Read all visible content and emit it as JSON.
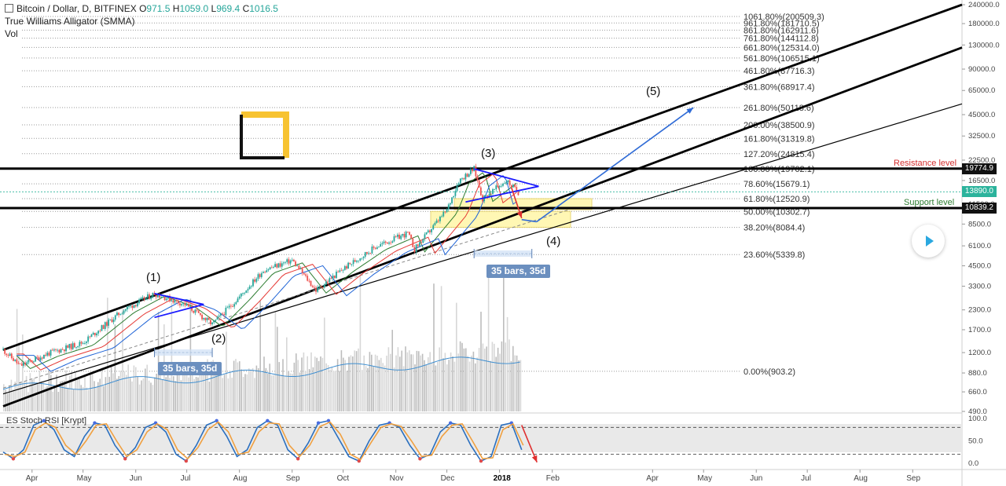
{
  "header": {
    "symbol": "Bitcoin / Dollar, D, BITFINEX",
    "open_label": "O",
    "open": "971.5",
    "high_label": "H",
    "high": "1059.0",
    "low_label": "L",
    "low": "969.4",
    "close_label": "C",
    "close": "1016.5",
    "indicator1": "True Williams Alligator (SMMA)",
    "indicator2": "Vol",
    "toggle_icon": "square-toggle-icon"
  },
  "colors": {
    "up": "#26a69a",
    "down": "#ef5350",
    "channel": "#000000",
    "triangle": "#1a1aff",
    "arrow_up": "#2f6bd6",
    "arrow_down": "#e03030",
    "stoch_k": "#2a6fbf",
    "stoch_d": "#f0a040",
    "logo": "#f7c331"
  },
  "annotations": {
    "resistance_text": "Resistance level",
    "support_text": "Support level",
    "bars_note_1": "35 bars, 35d",
    "bars_note_2": "35 bars, 35d",
    "play_icon": "play-icon",
    "logo_icon": "yellow-bracket-logo-icon"
  },
  "waves": [
    {
      "label": "(1)",
      "date": "2017-06-12"
    },
    {
      "label": "(2)",
      "date": "2017-07-16"
    },
    {
      "label": "(3)",
      "date": "2017-12-17"
    },
    {
      "label": "(4)",
      "date": "2018-01-20"
    },
    {
      "label": "(5)",
      "date": "2018-04-20"
    }
  ],
  "chart_data": [
    {
      "type": "candlestick",
      "title": "Bitcoin / Dollar, D, BITFINEX",
      "y_scale": "log",
      "ylim": [
        490,
        240000
      ],
      "xlim": [
        "2017-03-15",
        "2018-09-30"
      ],
      "x_tick_labels": [
        "Apr",
        "May",
        "Jun",
        "Jul",
        "Aug",
        "Sep",
        "Oct",
        "Nov",
        "Dec",
        "2018",
        "Feb",
        "Apr",
        "May",
        "Jun",
        "Jul",
        "Aug",
        "Sep"
      ],
      "y_tick_labels": [
        "240000.0",
        "180000.0",
        "130000.0",
        "90000.0",
        "65000.0",
        "45000.0",
        "32500.0",
        "22500.0",
        "16500.0",
        "11500.0",
        "8500.0",
        "6100.0",
        "4500.0",
        "3300.0",
        "2300.0",
        "1700.0",
        "1200.0",
        "880.0",
        "660.0",
        "490.0"
      ],
      "price_badges": {
        "resistance": "19774.9",
        "current": "13890.0",
        "support": "10839.2"
      },
      "fibonacci_levels": [
        {
          "label": "0.00%(903.2)",
          "price": 903.2
        },
        {
          "label": "23.60%(5339.8)",
          "price": 5339.8
        },
        {
          "label": "38.20%(8084.4)",
          "price": 8084.4
        },
        {
          "label": "50.00%(10302.7)",
          "price": 10302.7
        },
        {
          "label": "61.80%(12520.9)",
          "price": 12520.9
        },
        {
          "label": "78.60%(15679.1)",
          "price": 15679.1
        },
        {
          "label": "100.00%(19702.1)",
          "price": 19702.1
        },
        {
          "label": "127.20%(24815.4)",
          "price": 24815.4
        },
        {
          "label": "161.80%(31319.8)",
          "price": 31319.8
        },
        {
          "label": "200.00%(38500.9)",
          "price": 38500.9
        },
        {
          "label": "261.80%(50118.6)",
          "price": 50118.6
        },
        {
          "label": "361.80%(68917.4)",
          "price": 68917.4
        },
        {
          "label": "461.80%(87716.3)",
          "price": 87716.3
        },
        {
          "label": "561.80%(106515.1)",
          "price": 106515.1
        },
        {
          "label": "661.80%(125314.0)",
          "price": 125314.0
        },
        {
          "label": "761.80%(144112.8)",
          "price": 144112.8
        },
        {
          "label": "861.80%(162911.6)",
          "price": 162911.6
        },
        {
          "label": "961.80%(181710.5)",
          "price": 181710.5
        },
        {
          "label": "1061.80%(200509.3)",
          "price": 200509.3
        }
      ],
      "price_path": [
        {
          "x": "2017-03-15",
          "y": 1250
        },
        {
          "x": "2017-03-25",
          "y": 980
        },
        {
          "x": "2017-04-10",
          "y": 1180
        },
        {
          "x": "2017-05-01",
          "y": 1400
        },
        {
          "x": "2017-05-25",
          "y": 2300
        },
        {
          "x": "2017-06-12",
          "y": 2950
        },
        {
          "x": "2017-06-30",
          "y": 2500
        },
        {
          "x": "2017-07-16",
          "y": 1850
        },
        {
          "x": "2017-08-01",
          "y": 2800
        },
        {
          "x": "2017-08-15",
          "y": 4200
        },
        {
          "x": "2017-09-01",
          "y": 4900
        },
        {
          "x": "2017-09-15",
          "y": 3100
        },
        {
          "x": "2017-10-01",
          "y": 4300
        },
        {
          "x": "2017-10-20",
          "y": 6000
        },
        {
          "x": "2017-11-08",
          "y": 7400
        },
        {
          "x": "2017-11-12",
          "y": 5800
        },
        {
          "x": "2017-12-01",
          "y": 10500
        },
        {
          "x": "2017-12-08",
          "y": 16500
        },
        {
          "x": "2017-12-17",
          "y": 19700
        },
        {
          "x": "2017-12-22",
          "y": 12500
        },
        {
          "x": "2018-01-05",
          "y": 16500
        },
        {
          "x": "2018-01-12",
          "y": 13800
        }
      ],
      "channel_lines": [
        {
          "name": "upper",
          "from": {
            "x": "2017-03-15",
            "y": 1250
          },
          "to": {
            "x": "2018-09-30",
            "y": 240000
          }
        },
        {
          "name": "middle",
          "from": {
            "x": "2017-03-15",
            "y": 530
          },
          "to": {
            "x": "2018-09-30",
            "y": 125000
          }
        },
        {
          "name": "lower",
          "from": {
            "x": "2017-03-15",
            "y": 640
          },
          "to": {
            "x": "2018-09-30",
            "y": 53000
          }
        }
      ],
      "horizontal_levels": [
        {
          "name": "resistance",
          "y": 19774.9
        },
        {
          "name": "support",
          "y": 10839.2
        }
      ]
    },
    {
      "type": "line",
      "title": "ES Stoch RSI [Krypt]",
      "ylim": [
        0,
        100
      ],
      "y_tick_labels": [
        "100.0",
        "50.0",
        "0.0"
      ],
      "reference_lines": [
        80,
        20
      ],
      "series": [
        {
          "values": [
            25,
            10,
            30,
            85,
            95,
            75,
            30,
            15,
            60,
            90,
            85,
            40,
            10,
            35,
            80,
            90,
            70,
            20,
            5,
            40,
            85,
            95,
            60,
            15,
            30,
            80,
            95,
            85,
            30,
            10,
            45,
            90,
            95,
            55,
            15,
            5,
            50,
            85,
            90,
            80,
            40,
            10,
            20,
            70,
            90,
            85,
            40,
            5,
            15,
            85,
            90,
            30
          ]
        },
        {
          "values": [
            20,
            15,
            25,
            75,
            90,
            80,
            40,
            20,
            50,
            85,
            88,
            50,
            15,
            30,
            70,
            88,
            75,
            30,
            10,
            35,
            75,
            92,
            70,
            20,
            25,
            70,
            90,
            88,
            40,
            15,
            40,
            82,
            92,
            65,
            20,
            8,
            45,
            80,
            88,
            82,
            50,
            15,
            18,
            60,
            85,
            88,
            50,
            10,
            12,
            75,
            88,
            40
          ]
        }
      ]
    }
  ]
}
